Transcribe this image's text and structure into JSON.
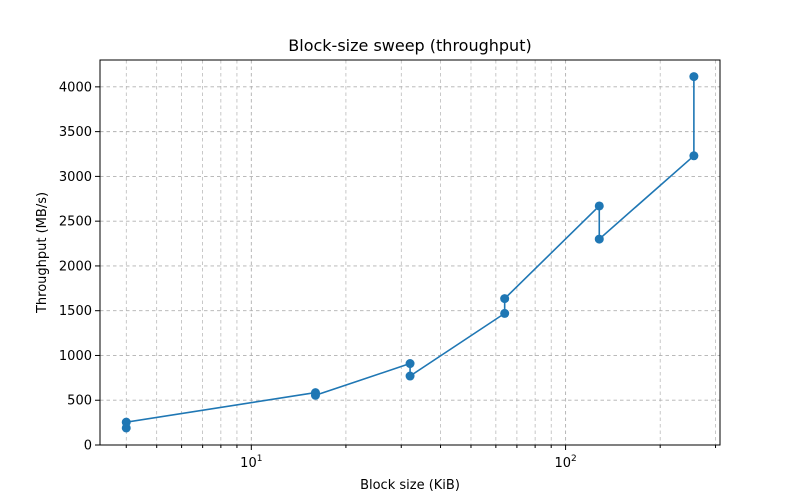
{
  "chart_data": {
    "type": "line",
    "title": "Block-size sweep (throughput)",
    "xlabel": "Block size (KiB)",
    "ylabel": "Throughput (MB/s)",
    "x_scale": "log",
    "xlim": [
      3.3,
      310
    ],
    "ylim": [
      0,
      4300
    ],
    "x_major_ticks": [
      10,
      100
    ],
    "x_tick_labels": [
      "10",
      "10"
    ],
    "x_tick_label_exponents": [
      "1",
      "2"
    ],
    "y_ticks": [
      0,
      500,
      1000,
      1500,
      2000,
      2500,
      3000,
      3500,
      4000
    ],
    "y_tick_labels": [
      "0",
      "500",
      "1000",
      "1500",
      "2000",
      "2500",
      "3000",
      "3500",
      "4000"
    ],
    "grid": true,
    "grid_style": "dashed",
    "series": [
      {
        "color": "#1f77b4",
        "points": [
          {
            "x": 4,
            "y": 190
          },
          {
            "x": 4,
            "y": 255
          },
          {
            "x": 16,
            "y": 585
          },
          {
            "x": 16,
            "y": 555
          },
          {
            "x": 32,
            "y": 910
          },
          {
            "x": 32,
            "y": 770
          },
          {
            "x": 64,
            "y": 1470
          },
          {
            "x": 64,
            "y": 1635
          },
          {
            "x": 128,
            "y": 2670
          },
          {
            "x": 128,
            "y": 2300
          },
          {
            "x": 256,
            "y": 3230
          },
          {
            "x": 256,
            "y": 4115
          }
        ]
      }
    ]
  }
}
